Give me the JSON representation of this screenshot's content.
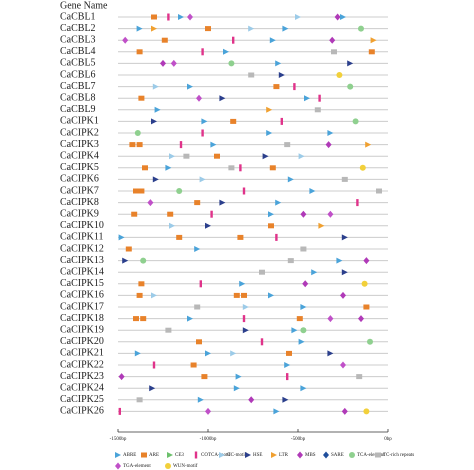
{
  "title": "Gene Name",
  "axis": {
    "range": [
      -1500,
      0
    ],
    "ticks": [
      {
        "value": -1500,
        "label": "-1500bp"
      },
      {
        "value": -1000,
        "label": "-1000bp"
      },
      {
        "value": -500,
        "label": "-500bp"
      },
      {
        "value": 0,
        "label": "0bp"
      }
    ]
  },
  "legend": [
    {
      "label": "ABRE",
      "color": "#4aa3d9",
      "shape": "arrow"
    },
    {
      "label": "ARE",
      "color": "#e8822a",
      "shape": "rect"
    },
    {
      "label": "CE3",
      "color": "#6cc06c",
      "shape": "arrow"
    },
    {
      "label": "COTCA-motif",
      "color": "#e0338a",
      "shape": "bar"
    },
    {
      "label": "GC-motif",
      "color": "#9ccbe8",
      "shape": "arrow"
    },
    {
      "label": "HSE",
      "color": "#2b3f8c",
      "shape": "arrow"
    },
    {
      "label": "LTR",
      "color": "#f0a030",
      "shape": "arrow"
    },
    {
      "label": "MBS",
      "color": "#b03ab8",
      "shape": "diamond"
    },
    {
      "label": "SARE",
      "color": "#1f4e9c",
      "shape": "diamond"
    },
    {
      "label": "TCA-element",
      "color": "#8fd08f",
      "shape": "circle"
    },
    {
      "label": "TC-rich repeats",
      "color": "#b8b8b8",
      "shape": "rect"
    },
    {
      "label": "TGA-element",
      "color": "#c050c8",
      "shape": "diamond"
    },
    {
      "label": "WUN-motif",
      "color": "#f2d03a",
      "shape": "circle"
    }
  ],
  "genes": [
    {
      "name": "CaCBL1",
      "elements": [
        {
          "type": "ARE",
          "pos": -1300
        },
        {
          "type": "COTCA-motif",
          "pos": -1220
        },
        {
          "type": "ABRE",
          "pos": -1150
        },
        {
          "type": "TGA-element",
          "pos": -1100
        },
        {
          "type": "GC-motif",
          "pos": -500
        },
        {
          "type": "MBS",
          "pos": -280
        },
        {
          "type": "ABRE",
          "pos": -250
        }
      ]
    },
    {
      "name": "CaCBL2",
      "elements": [
        {
          "type": "ABRE",
          "pos": -1380
        },
        {
          "type": "LTR",
          "pos": -1300
        },
        {
          "type": "ARE",
          "pos": -1000
        },
        {
          "type": "GC-motif",
          "pos": -760
        },
        {
          "type": "ABRE",
          "pos": -570
        },
        {
          "type": "TCA-element",
          "pos": -150
        }
      ]
    },
    {
      "name": "CaCBL3",
      "elements": [
        {
          "type": "TGA-element",
          "pos": -1460
        },
        {
          "type": "ARE",
          "pos": -1240
        },
        {
          "type": "COTCA-motif",
          "pos": -860
        },
        {
          "type": "ABRE",
          "pos": -640
        },
        {
          "type": "MBS",
          "pos": -310
        },
        {
          "type": "LTR",
          "pos": -80
        }
      ]
    },
    {
      "name": "CaCBL4",
      "elements": [
        {
          "type": "ARE",
          "pos": -1380
        },
        {
          "type": "COTCA-motif",
          "pos": -1030
        },
        {
          "type": "ABRE",
          "pos": -900
        },
        {
          "type": "TC-rich repeats",
          "pos": -300
        },
        {
          "type": "ARE",
          "pos": -90
        }
      ]
    },
    {
      "name": "CaCBL5",
      "elements": [
        {
          "type": "MBS",
          "pos": -1250
        },
        {
          "type": "TGA-element",
          "pos": -1190
        },
        {
          "type": "TCA-element",
          "pos": -870
        },
        {
          "type": "ABRE",
          "pos": -610
        },
        {
          "type": "HSE",
          "pos": -210
        }
      ]
    },
    {
      "name": "CaCBL6",
      "elements": [
        {
          "type": "TC-rich repeats",
          "pos": -760
        },
        {
          "type": "HSE",
          "pos": -590
        },
        {
          "type": "WUN-motif",
          "pos": -270
        }
      ]
    },
    {
      "name": "CaCBL7",
      "elements": [
        {
          "type": "GC-motif",
          "pos": -1290
        },
        {
          "type": "ABRE",
          "pos": -1100
        },
        {
          "type": "ARE",
          "pos": -620
        },
        {
          "type": "COTCA-motif",
          "pos": -520
        },
        {
          "type": "TCA-element",
          "pos": -210
        }
      ]
    },
    {
      "name": "CaCBL8",
      "elements": [
        {
          "type": "ARE",
          "pos": -1370
        },
        {
          "type": "TGA-element",
          "pos": -1050
        },
        {
          "type": "HSE",
          "pos": -920
        },
        {
          "type": "ABRE",
          "pos": -450
        },
        {
          "type": "COTCA-motif",
          "pos": -380
        }
      ]
    },
    {
      "name": "CaCBL9",
      "elements": [
        {
          "type": "ABRE",
          "pos": -1280
        },
        {
          "type": "LTR",
          "pos": -660
        },
        {
          "type": "TC-rich repeats",
          "pos": -390
        }
      ]
    },
    {
      "name": "CaCIPK1",
      "elements": [
        {
          "type": "HSE",
          "pos": -1300
        },
        {
          "type": "ABRE",
          "pos": -1020
        },
        {
          "type": "ARE",
          "pos": -860
        },
        {
          "type": "COTCA-motif",
          "pos": -590
        },
        {
          "type": "TCA-element",
          "pos": -180
        }
      ]
    },
    {
      "name": "CaCIPK2",
      "elements": [
        {
          "type": "TCA-element",
          "pos": -1390
        },
        {
          "type": "COTCA-motif",
          "pos": -1030
        },
        {
          "type": "ABRE",
          "pos": -660
        },
        {
          "type": "ABRE",
          "pos": -320
        }
      ]
    },
    {
      "name": "CaCIPK3",
      "elements": [
        {
          "type": "ARE",
          "pos": -1420
        },
        {
          "type": "ARE",
          "pos": -1380
        },
        {
          "type": "COTCA-motif",
          "pos": -1150
        },
        {
          "type": "ABRE",
          "pos": -970
        },
        {
          "type": "TC-rich repeats",
          "pos": -560
        },
        {
          "type": "MBS",
          "pos": -330
        },
        {
          "type": "LTR",
          "pos": -110
        }
      ]
    },
    {
      "name": "CaCIPK4",
      "elements": [
        {
          "type": "GC-motif",
          "pos": -1200
        },
        {
          "type": "TC-rich repeats",
          "pos": -1120
        },
        {
          "type": "ARE",
          "pos": -950
        },
        {
          "type": "HSE",
          "pos": -680
        },
        {
          "type": "GC-motif",
          "pos": -480
        }
      ]
    },
    {
      "name": "CaCIPK5",
      "elements": [
        {
          "type": "ARE",
          "pos": -1350
        },
        {
          "type": "ABRE",
          "pos": -1220
        },
        {
          "type": "TC-rich repeats",
          "pos": -870
        },
        {
          "type": "COTCA-motif",
          "pos": -820
        },
        {
          "type": "ARE",
          "pos": -640
        },
        {
          "type": "WUN-motif",
          "pos": -140
        }
      ]
    },
    {
      "name": "CaCIPK6",
      "elements": [
        {
          "type": "HSE",
          "pos": -1290
        },
        {
          "type": "GC-motif",
          "pos": -1030
        },
        {
          "type": "ABRE",
          "pos": -540
        },
        {
          "type": "TC-rich repeats",
          "pos": -240
        }
      ]
    },
    {
      "name": "CaCIPK7",
      "elements": [
        {
          "type": "ARE",
          "pos": -1400
        },
        {
          "type": "ARE",
          "pos": -1370
        },
        {
          "type": "TCA-element",
          "pos": -1160
        },
        {
          "type": "COTCA-motif",
          "pos": -800
        },
        {
          "type": "ABRE",
          "pos": -420
        },
        {
          "type": "TC-rich repeats",
          "pos": -50
        }
      ]
    },
    {
      "name": "CaCIPK8",
      "elements": [
        {
          "type": "TGA-element",
          "pos": -1320
        },
        {
          "type": "ARE",
          "pos": -1060
        },
        {
          "type": "HSE",
          "pos": -920
        },
        {
          "type": "ABRE",
          "pos": -610
        },
        {
          "type": "COTCA-motif",
          "pos": -170
        }
      ]
    },
    {
      "name": "CaCIPK9",
      "elements": [
        {
          "type": "ARE",
          "pos": -1410
        },
        {
          "type": "ARE",
          "pos": -1210
        },
        {
          "type": "COTCA-motif",
          "pos": -980
        },
        {
          "type": "ABRE",
          "pos": -650
        },
        {
          "type": "MBS",
          "pos": -470
        },
        {
          "type": "TGA-element",
          "pos": -320
        }
      ]
    },
    {
      "name": "CaCIPK10",
      "elements": [
        {
          "type": "GC-motif",
          "pos": -1200
        },
        {
          "type": "HSE",
          "pos": -1000
        },
        {
          "type": "ARE",
          "pos": -650
        },
        {
          "type": "LTR",
          "pos": -370
        }
      ]
    },
    {
      "name": "CaCIPK11",
      "elements": [
        {
          "type": "ABRE",
          "pos": -1480
        },
        {
          "type": "ARE",
          "pos": -1160
        },
        {
          "type": "ARE",
          "pos": -820
        },
        {
          "type": "COTCA-motif",
          "pos": -620
        },
        {
          "type": "HSE",
          "pos": -240
        }
      ]
    },
    {
      "name": "CaCIPK12",
      "elements": [
        {
          "type": "ARE",
          "pos": -1440
        },
        {
          "type": "ABRE",
          "pos": -1060
        },
        {
          "type": "TC-rich repeats",
          "pos": -470
        }
      ]
    },
    {
      "name": "CaCIPK13",
      "elements": [
        {
          "type": "HSE",
          "pos": -1460
        },
        {
          "type": "TCA-element",
          "pos": -1360
        },
        {
          "type": "TC-rich repeats",
          "pos": -540
        },
        {
          "type": "ABRE",
          "pos": -270
        },
        {
          "type": "MBS",
          "pos": -120
        }
      ]
    },
    {
      "name": "CaCIPK14",
      "elements": [
        {
          "type": "TC-rich repeats",
          "pos": -700
        },
        {
          "type": "ABRE",
          "pos": -410
        },
        {
          "type": "HSE",
          "pos": -240
        }
      ]
    },
    {
      "name": "CaCIPK15",
      "elements": [
        {
          "type": "ARE",
          "pos": -1370
        },
        {
          "type": "COTCA-motif",
          "pos": -1040
        },
        {
          "type": "ABRE",
          "pos": -810
        },
        {
          "type": "MBS",
          "pos": -460
        },
        {
          "type": "WUN-motif",
          "pos": -130
        }
      ]
    },
    {
      "name": "CaCIPK16",
      "elements": [
        {
          "type": "ARE",
          "pos": -1380
        },
        {
          "type": "GC-motif",
          "pos": -1300
        },
        {
          "type": "ARE",
          "pos": -840
        },
        {
          "type": "ARE",
          "pos": -800
        },
        {
          "type": "ABRE",
          "pos": -650
        },
        {
          "type": "MBS",
          "pos": -250
        }
      ]
    },
    {
      "name": "CaCIPK17",
      "elements": [
        {
          "type": "TC-rich repeats",
          "pos": -1060
        },
        {
          "type": "GC-motif",
          "pos": -790
        },
        {
          "type": "ABRE",
          "pos": -470
        },
        {
          "type": "ARE",
          "pos": -120
        }
      ]
    },
    {
      "name": "CaCIPK18",
      "elements": [
        {
          "type": "ARE",
          "pos": -1400
        },
        {
          "type": "ARE",
          "pos": -1360
        },
        {
          "type": "ABRE",
          "pos": -1100
        },
        {
          "type": "COTCA-motif",
          "pos": -800
        },
        {
          "type": "ARE",
          "pos": -490
        },
        {
          "type": "TGA-element",
          "pos": -320
        },
        {
          "type": "MBS",
          "pos": -150
        }
      ]
    },
    {
      "name": "CaCIPK19",
      "elements": [
        {
          "type": "TC-rich repeats",
          "pos": -1220
        },
        {
          "type": "HSE",
          "pos": -790
        },
        {
          "type": "ABRE",
          "pos": -520
        },
        {
          "type": "TCA-element",
          "pos": -470
        }
      ]
    },
    {
      "name": "CaCIPK20",
      "elements": [
        {
          "type": "ARE",
          "pos": -1050
        },
        {
          "type": "COTCA-motif",
          "pos": -700
        },
        {
          "type": "ABRE",
          "pos": -480
        },
        {
          "type": "TCA-element",
          "pos": -100
        }
      ]
    },
    {
      "name": "CaCIPK21",
      "elements": [
        {
          "type": "ABRE",
          "pos": -1390
        },
        {
          "type": "ABRE",
          "pos": -1000
        },
        {
          "type": "GC-motif",
          "pos": -860
        },
        {
          "type": "ARE",
          "pos": -550
        },
        {
          "type": "HSE",
          "pos": -320
        }
      ]
    },
    {
      "name": "CaCIPK22",
      "elements": [
        {
          "type": "COTCA-motif",
          "pos": -1300
        },
        {
          "type": "ARE",
          "pos": -1080
        },
        {
          "type": "ABRE",
          "pos": -560
        },
        {
          "type": "TGA-element",
          "pos": -250
        }
      ]
    },
    {
      "name": "CaCIPK23",
      "elements": [
        {
          "type": "MBS",
          "pos": -1480
        },
        {
          "type": "ARE",
          "pos": -1020
        },
        {
          "type": "ABRE",
          "pos": -830
        },
        {
          "type": "COTCA-motif",
          "pos": -560
        },
        {
          "type": "TC-rich repeats",
          "pos": -160
        }
      ]
    },
    {
      "name": "CaCIPK24",
      "elements": [
        {
          "type": "HSE",
          "pos": -1310
        },
        {
          "type": "ABRE",
          "pos": -840
        },
        {
          "type": "ABRE",
          "pos": -470
        }
      ]
    },
    {
      "name": "CaCIPK25",
      "elements": [
        {
          "type": "TC-rich repeats",
          "pos": -1380
        },
        {
          "type": "ABRE",
          "pos": -1040
        },
        {
          "type": "MBS",
          "pos": -760
        },
        {
          "type": "HSE",
          "pos": -570
        }
      ]
    },
    {
      "name": "CaCIPK26",
      "elements": [
        {
          "type": "COTCA-motif",
          "pos": -1490
        },
        {
          "type": "TGA-element",
          "pos": -1000
        },
        {
          "type": "ABRE",
          "pos": -620
        },
        {
          "type": "MBS",
          "pos": -240
        },
        {
          "type": "WUN-motif",
          "pos": -120
        }
      ]
    }
  ]
}
